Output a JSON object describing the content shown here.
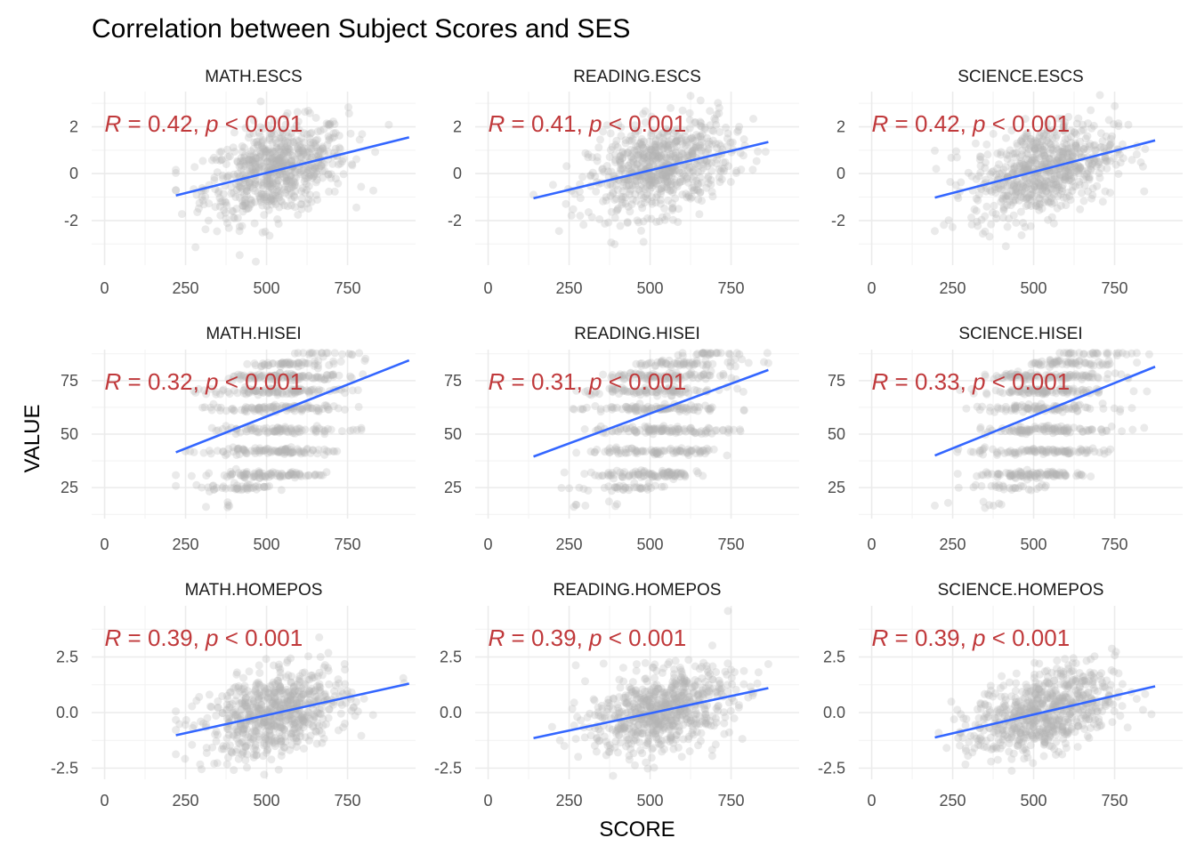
{
  "title": "Correlation between Subject Scores and SES",
  "xlabel": "SCORE",
  "ylabel": "VALUE",
  "colors": {
    "points": "#b3b3b3",
    "fit_line": "#3366FF",
    "stat_text": "#C0393B",
    "grid_major": "#ebebeb",
    "grid_minor": "#f2f2f2"
  },
  "chart_data": {
    "type": "scatter",
    "facet_layout": {
      "rows": [
        "ESCS",
        "HISEI",
        "HOMEPOS"
      ],
      "cols": [
        "MATH",
        "READING",
        "SCIENCE"
      ]
    },
    "x_ticks": [
      0,
      250,
      500,
      750
    ],
    "x_ticks_labels": [
      "0",
      "250",
      "500",
      "750"
    ],
    "xlim": [
      -40,
      960
    ],
    "rows": [
      {
        "y_ticks": [
          -2,
          0,
          2
        ],
        "y_ticks_labels": [
          "-2",
          "0",
          "2"
        ],
        "ylim": [
          -3.9,
          3.5
        ],
        "point_cloud": {
          "center_y": 0.0,
          "spread_y": 0.95,
          "discrete_levels": null
        }
      },
      {
        "y_ticks": [
          25,
          50,
          75
        ],
        "y_ticks_labels": [
          "25",
          "50",
          "75"
        ],
        "ylim": [
          10.5,
          89.5
        ],
        "point_cloud": {
          "center_y": 48,
          "spread_y": 22,
          "discrete_levels": [
            17,
            25,
            31,
            42,
            52,
            62,
            70,
            77,
            83,
            88
          ]
        }
      },
      {
        "y_ticks": [
          -2.5,
          0.0,
          2.5
        ],
        "y_ticks_labels": [
          "-2.5",
          "0.0",
          "2.5"
        ],
        "ylim": [
          -3.0,
          4.8
        ],
        "point_cloud": {
          "center_y": 0.0,
          "spread_y": 0.9,
          "discrete_levels": null
        }
      }
    ],
    "panels": [
      {
        "name": "MATH.ESCS",
        "row": 0,
        "col": 0,
        "stat_r": "R = 0.42, ",
        "stat_p": "p < 0.001",
        "x_range": [
          220,
          940
        ],
        "fit": {
          "x": [
            220,
            940
          ],
          "y": [
            -0.93,
            1.55
          ]
        }
      },
      {
        "name": "READING.ESCS",
        "row": 0,
        "col": 1,
        "stat_r": "R = 0.41, ",
        "stat_p": "p < 0.001",
        "x_range": [
          140,
          865
        ],
        "fit": {
          "x": [
            140,
            865
          ],
          "y": [
            -1.05,
            1.35
          ]
        }
      },
      {
        "name": "SCIENCE.ESCS",
        "row": 0,
        "col": 2,
        "stat_r": "R = 0.42, ",
        "stat_p": "p < 0.001",
        "x_range": [
          195,
          875
        ],
        "fit": {
          "x": [
            195,
            875
          ],
          "y": [
            -1.02,
            1.42
          ]
        }
      },
      {
        "name": "MATH.HISEI",
        "row": 1,
        "col": 0,
        "stat_r": "R = 0.32, ",
        "stat_p": "p < 0.001",
        "x_range": [
          220,
          940
        ],
        "fit": {
          "x": [
            220,
            940
          ],
          "y": [
            41.5,
            84.5
          ]
        }
      },
      {
        "name": "READING.HISEI",
        "row": 1,
        "col": 1,
        "stat_r": "R = 0.31, ",
        "stat_p": "p < 0.001",
        "x_range": [
          140,
          865
        ],
        "fit": {
          "x": [
            140,
            865
          ],
          "y": [
            39.5,
            80.0
          ]
        }
      },
      {
        "name": "SCIENCE.HISEI",
        "row": 1,
        "col": 2,
        "stat_r": "R = 0.33, ",
        "stat_p": "p < 0.001",
        "x_range": [
          195,
          875
        ],
        "fit": {
          "x": [
            195,
            875
          ],
          "y": [
            40.0,
            81.5
          ]
        }
      },
      {
        "name": "MATH.HOMEPOS",
        "row": 2,
        "col": 0,
        "stat_r": "R = 0.39, ",
        "stat_p": "p < 0.001",
        "x_range": [
          220,
          940
        ],
        "fit": {
          "x": [
            220,
            940
          ],
          "y": [
            -1.02,
            1.3
          ]
        }
      },
      {
        "name": "READING.HOMEPOS",
        "row": 2,
        "col": 1,
        "stat_r": "R = 0.39, ",
        "stat_p": "p < 0.001",
        "x_range": [
          140,
          865
        ],
        "fit": {
          "x": [
            140,
            865
          ],
          "y": [
            -1.15,
            1.1
          ]
        }
      },
      {
        "name": "SCIENCE.HOMEPOS",
        "row": 2,
        "col": 2,
        "stat_r": "R = 0.39, ",
        "stat_p": "p < 0.001",
        "x_range": [
          195,
          875
        ],
        "fit": {
          "x": [
            195,
            875
          ],
          "y": [
            -1.12,
            1.18
          ]
        }
      }
    ]
  }
}
